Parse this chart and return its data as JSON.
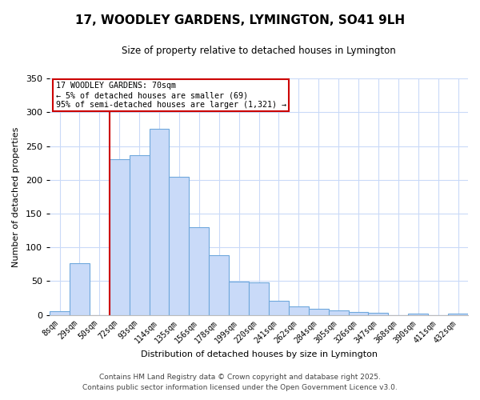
{
  "title": "17, WOODLEY GARDENS, LYMINGTON, SO41 9LH",
  "subtitle": "Size of property relative to detached houses in Lymington",
  "xlabel": "Distribution of detached houses by size in Lymington",
  "ylabel": "Number of detached properties",
  "bar_labels": [
    "8sqm",
    "29sqm",
    "50sqm",
    "72sqm",
    "93sqm",
    "114sqm",
    "135sqm",
    "156sqm",
    "178sqm",
    "199sqm",
    "220sqm",
    "241sqm",
    "262sqm",
    "284sqm",
    "305sqm",
    "326sqm",
    "347sqm",
    "368sqm",
    "390sqm",
    "411sqm",
    "432sqm"
  ],
  "bar_values": [
    6,
    77,
    0,
    230,
    237,
    275,
    204,
    130,
    89,
    49,
    48,
    21,
    13,
    9,
    7,
    4,
    3,
    0,
    2,
    0,
    2
  ],
  "bar_color": "#c9daf8",
  "bar_edge_color": "#6fa8dc",
  "vline_x_index": 3,
  "vline_color": "#cc0000",
  "annotation_title": "17 WOODLEY GARDENS: 70sqm",
  "annotation_line1": "← 5% of detached houses are smaller (69)",
  "annotation_line2": "95% of semi-detached houses are larger (1,321) →",
  "annotation_box_color": "#ffffff",
  "annotation_box_edge": "#cc0000",
  "ylim": [
    0,
    350
  ],
  "yticks": [
    0,
    50,
    100,
    150,
    200,
    250,
    300,
    350
  ],
  "footer1": "Contains HM Land Registry data © Crown copyright and database right 2025.",
  "footer2": "Contains public sector information licensed under the Open Government Licence v3.0.",
  "bg_color": "#ffffff",
  "grid_color": "#c9daf8",
  "title_fontsize": 11,
  "subtitle_fontsize": 8.5,
  "axis_label_fontsize": 8,
  "tick_fontsize": 7,
  "footer_fontsize": 6.5
}
